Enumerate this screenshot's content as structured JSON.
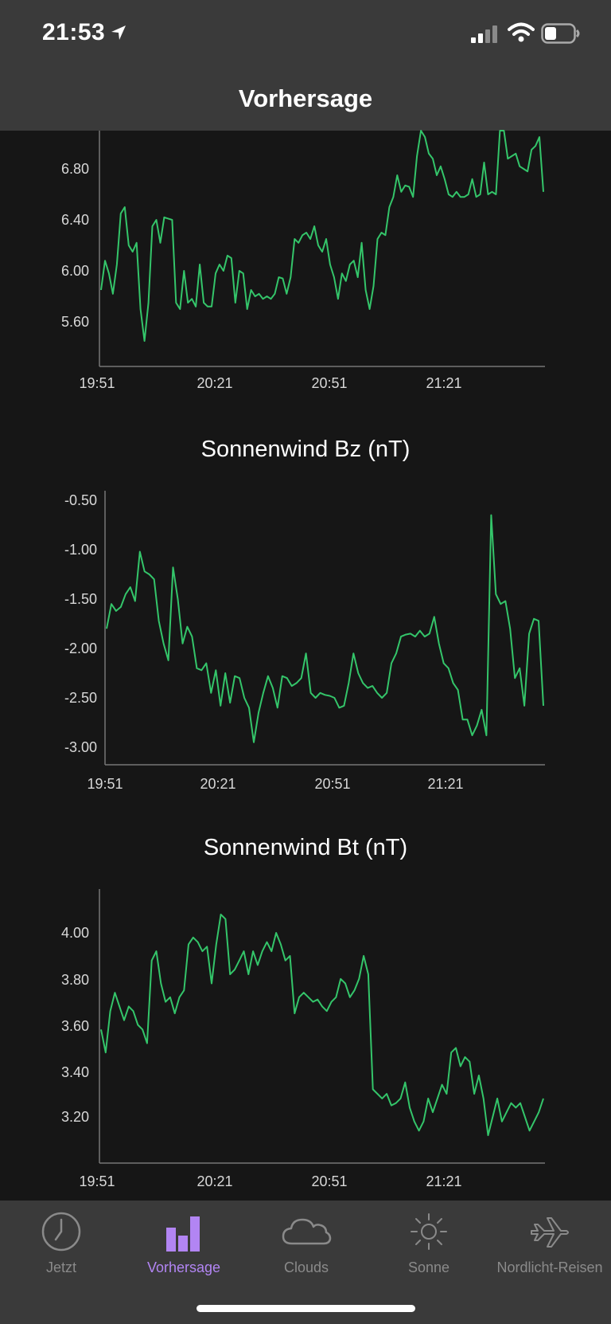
{
  "status_bar": {
    "time": "21:53"
  },
  "nav": {
    "title": "Vorhersage"
  },
  "accent_color": "#b285f3",
  "line_color": "#34c56a",
  "chart_data": [
    {
      "type": "line",
      "title": "",
      "x_ticks": [
        "19:51",
        "20:21",
        "20:51",
        "21:21"
      ],
      "y_ticks": [
        "6.80",
        "6.40",
        "6.00",
        "5.60"
      ],
      "ylim": [
        5.2,
        7.2
      ],
      "y": [
        5.85,
        6.08,
        5.98,
        5.82,
        6.05,
        6.45,
        6.5,
        6.2,
        6.15,
        6.22,
        5.7,
        5.45,
        5.75,
        6.35,
        6.4,
        6.22,
        6.42,
        6.41,
        6.4,
        5.75,
        5.7,
        6.0,
        5.75,
        5.78,
        5.72,
        6.05,
        5.75,
        5.72,
        5.72,
        5.98,
        6.05,
        6.0,
        6.12,
        6.1,
        5.75,
        6.0,
        5.98,
        5.7,
        5.85,
        5.8,
        5.82,
        5.78,
        5.8,
        5.78,
        5.82,
        5.95,
        5.94,
        5.82,
        5.95,
        6.25,
        6.22,
        6.28,
        6.3,
        6.25,
        6.35,
        6.2,
        6.15,
        6.25,
        6.05,
        5.95,
        5.78,
        5.98,
        5.92,
        6.05,
        6.08,
        5.95,
        6.22,
        5.85,
        5.7,
        5.88,
        6.25,
        6.3,
        6.28,
        6.5,
        6.58,
        6.75,
        6.62,
        6.67,
        6.66,
        6.58,
        6.9,
        7.12,
        7.05,
        6.92,
        6.88,
        6.75,
        6.82,
        6.72,
        6.6,
        6.58,
        6.62,
        6.58,
        6.58,
        6.6,
        6.72,
        6.58,
        6.6,
        6.85,
        6.6,
        6.62,
        6.6,
        7.12,
        7.1,
        6.88,
        6.9,
        6.92,
        6.82,
        6.8,
        6.78,
        6.95,
        6.98,
        7.05,
        6.62
      ]
    },
    {
      "type": "line",
      "title": "Sonnenwind Bz (nT)",
      "x_ticks": [
        "19:51",
        "20:21",
        "20:51",
        "21:21"
      ],
      "y_ticks": [
        "-0.50",
        "-1.00",
        "-1.50",
        "-2.00",
        "-2.50",
        "-3.00"
      ],
      "ylim": [
        -3.2,
        -0.4
      ],
      "y": [
        -1.8,
        -1.55,
        -1.62,
        -1.58,
        -1.45,
        -1.38,
        -1.52,
        -1.02,
        -1.22,
        -1.25,
        -1.3,
        -1.72,
        -1.95,
        -2.12,
        -1.18,
        -1.5,
        -1.95,
        -1.78,
        -1.88,
        -2.2,
        -2.22,
        -2.15,
        -2.45,
        -2.22,
        -2.58,
        -2.25,
        -2.55,
        -2.28,
        -2.3,
        -2.5,
        -2.6,
        -2.95,
        -2.65,
        -2.45,
        -2.28,
        -2.4,
        -2.6,
        -2.28,
        -2.3,
        -2.38,
        -2.35,
        -2.3,
        -2.05,
        -2.45,
        -2.5,
        -2.45,
        -2.47,
        -2.48,
        -2.5,
        -2.6,
        -2.58,
        -2.35,
        -2.05,
        -2.25,
        -2.35,
        -2.4,
        -2.38,
        -2.45,
        -2.5,
        -2.45,
        -2.15,
        -2.05,
        -1.88,
        -1.86,
        -1.85,
        -1.88,
        -1.82,
        -1.88,
        -1.85,
        -1.68,
        -1.95,
        -2.15,
        -2.2,
        -2.35,
        -2.42,
        -2.72,
        -2.72,
        -2.88,
        -2.78,
        -2.62,
        -2.88,
        -0.65,
        -1.45,
        -1.55,
        -1.52,
        -1.8,
        -2.3,
        -2.2,
        -2.58,
        -1.85,
        -1.7,
        -1.72,
        -2.58
      ]
    },
    {
      "type": "line",
      "title": "Sonnenwind Bt (nT)",
      "x_ticks": [
        "19:51",
        "20:21",
        "20:51",
        "21:21"
      ],
      "y_ticks": [
        "4.00",
        "3.80",
        "3.60",
        "3.40",
        "3.20"
      ],
      "ylim": [
        3.0,
        4.2
      ],
      "y": [
        3.58,
        3.48,
        3.66,
        3.74,
        3.68,
        3.62,
        3.68,
        3.66,
        3.6,
        3.58,
        3.52,
        3.88,
        3.92,
        3.78,
        3.7,
        3.72,
        3.65,
        3.72,
        3.75,
        3.95,
        3.98,
        3.96,
        3.92,
        3.94,
        3.78,
        3.95,
        4.08,
        4.06,
        3.82,
        3.84,
        3.88,
        3.92,
        3.82,
        3.92,
        3.86,
        3.92,
        3.96,
        3.92,
        4.0,
        3.95,
        3.88,
        3.9,
        3.65,
        3.72,
        3.74,
        3.72,
        3.7,
        3.71,
        3.68,
        3.66,
        3.7,
        3.72,
        3.8,
        3.78,
        3.72,
        3.75,
        3.8,
        3.9,
        3.82,
        3.32,
        3.3,
        3.28,
        3.3,
        3.25,
        3.26,
        3.28,
        3.35,
        3.24,
        3.18,
        3.14,
        3.18,
        3.28,
        3.22,
        3.28,
        3.34,
        3.3,
        3.48,
        3.5,
        3.42,
        3.46,
        3.44,
        3.3,
        3.38,
        3.28,
        3.12,
        3.2,
        3.28,
        3.18,
        3.22,
        3.26,
        3.24,
        3.26,
        3.2,
        3.14,
        3.18,
        3.22,
        3.28
      ]
    }
  ],
  "tabs": [
    {
      "label": "Jetzt",
      "icon": "clock-icon"
    },
    {
      "label": "Vorhersage",
      "icon": "bar-chart-icon"
    },
    {
      "label": "Clouds",
      "icon": "cloud-icon"
    },
    {
      "label": "Sonne",
      "icon": "sun-icon"
    },
    {
      "label": "Nordlicht-Reisen",
      "icon": "airplane-icon"
    }
  ],
  "active_tab": 1
}
